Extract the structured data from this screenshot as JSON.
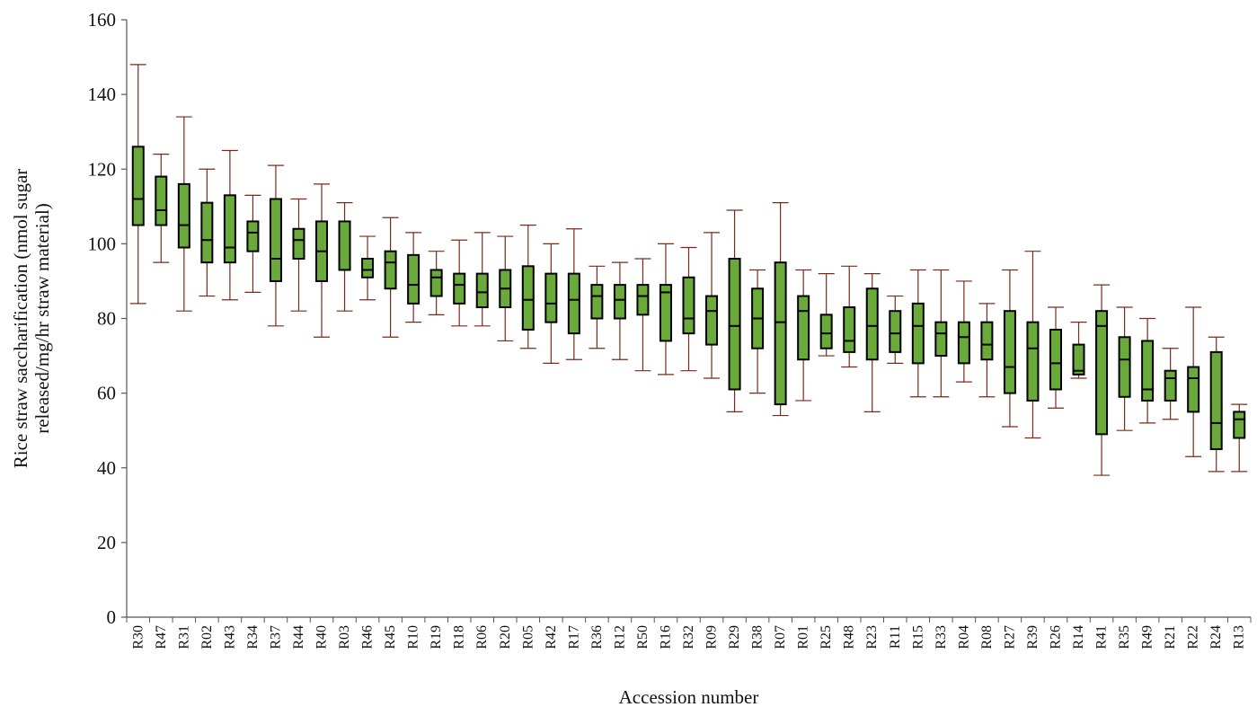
{
  "chart_data": {
    "type": "boxplot",
    "title": "",
    "xlabel": "Accession number",
    "ylabel_lines": [
      "Rice straw saccharification (nmol sugar",
      "released/mg/hr straw material)"
    ],
    "ylim": [
      0,
      160
    ],
    "yticks": [
      0,
      20,
      40,
      60,
      80,
      100,
      120,
      140,
      160
    ],
    "box_color": "#6aaa3a",
    "whisker_color": "#7a2a1a",
    "grid": false,
    "categories": [
      "R30",
      "R47",
      "R31",
      "R02",
      "R43",
      "R34",
      "R37",
      "R44",
      "R40",
      "R03",
      "R46",
      "R45",
      "R10",
      "R19",
      "R18",
      "R06",
      "R20",
      "R05",
      "R42",
      "R17",
      "R36",
      "R12",
      "R50",
      "R16",
      "R32",
      "R09",
      "R29",
      "R38",
      "R07",
      "R01",
      "R25",
      "R48",
      "R23",
      "R11",
      "R15",
      "R33",
      "R04",
      "R08",
      "R27",
      "R39",
      "R26",
      "R14",
      "R41",
      "R35",
      "R49",
      "R21",
      "R22",
      "R24",
      "R13"
    ],
    "boxes": [
      {
        "min": 84,
        "q1": 105,
        "median": 112,
        "q3": 126,
        "max": 148
      },
      {
        "min": 95,
        "q1": 105,
        "median": 109,
        "q3": 118,
        "max": 124
      },
      {
        "min": 82,
        "q1": 99,
        "median": 105,
        "q3": 116,
        "max": 134
      },
      {
        "min": 86,
        "q1": 95,
        "median": 101,
        "q3": 111,
        "max": 120
      },
      {
        "min": 85,
        "q1": 95,
        "median": 99,
        "q3": 113,
        "max": 125
      },
      {
        "min": 87,
        "q1": 98,
        "median": 103,
        "q3": 106,
        "max": 113
      },
      {
        "min": 78,
        "q1": 90,
        "median": 96,
        "q3": 112,
        "max": 121
      },
      {
        "min": 82,
        "q1": 96,
        "median": 101,
        "q3": 104,
        "max": 112
      },
      {
        "min": 75,
        "q1": 90,
        "median": 98,
        "q3": 106,
        "max": 116
      },
      {
        "min": 82,
        "q1": 93,
        "median": 93,
        "q3": 106,
        "max": 111
      },
      {
        "min": 85,
        "q1": 91,
        "median": 93,
        "q3": 96,
        "max": 102
      },
      {
        "min": 75,
        "q1": 88,
        "median": 95,
        "q3": 98,
        "max": 107
      },
      {
        "min": 79,
        "q1": 84,
        "median": 89,
        "q3": 97,
        "max": 103
      },
      {
        "min": 81,
        "q1": 86,
        "median": 91,
        "q3": 93,
        "max": 98
      },
      {
        "min": 78,
        "q1": 84,
        "median": 89,
        "q3": 92,
        "max": 101
      },
      {
        "min": 78,
        "q1": 83,
        "median": 87,
        "q3": 92,
        "max": 103
      },
      {
        "min": 74,
        "q1": 83,
        "median": 88,
        "q3": 93,
        "max": 102
      },
      {
        "min": 72,
        "q1": 77,
        "median": 85,
        "q3": 94,
        "max": 105
      },
      {
        "min": 68,
        "q1": 79,
        "median": 84,
        "q3": 92,
        "max": 100
      },
      {
        "min": 69,
        "q1": 76,
        "median": 85,
        "q3": 92,
        "max": 104
      },
      {
        "min": 72,
        "q1": 80,
        "median": 86,
        "q3": 89,
        "max": 94
      },
      {
        "min": 69,
        "q1": 80,
        "median": 85,
        "q3": 89,
        "max": 95
      },
      {
        "min": 66,
        "q1": 81,
        "median": 86,
        "q3": 89,
        "max": 96
      },
      {
        "min": 65,
        "q1": 74,
        "median": 87,
        "q3": 89,
        "max": 100
      },
      {
        "min": 66,
        "q1": 76,
        "median": 80,
        "q3": 91,
        "max": 99
      },
      {
        "min": 64,
        "q1": 73,
        "median": 82,
        "q3": 86,
        "max": 103
      },
      {
        "min": 55,
        "q1": 61,
        "median": 78,
        "q3": 96,
        "max": 109
      },
      {
        "min": 60,
        "q1": 72,
        "median": 80,
        "q3": 88,
        "max": 93
      },
      {
        "min": 54,
        "q1": 57,
        "median": 79,
        "q3": 95,
        "max": 111
      },
      {
        "min": 58,
        "q1": 69,
        "median": 82,
        "q3": 86,
        "max": 93
      },
      {
        "min": 70,
        "q1": 72,
        "median": 76,
        "q3": 81,
        "max": 92
      },
      {
        "min": 67,
        "q1": 71,
        "median": 74,
        "q3": 83,
        "max": 94
      },
      {
        "min": 55,
        "q1": 69,
        "median": 78,
        "q3": 88,
        "max": 92
      },
      {
        "min": 68,
        "q1": 71,
        "median": 76,
        "q3": 82,
        "max": 86
      },
      {
        "min": 59,
        "q1": 68,
        "median": 78,
        "q3": 84,
        "max": 93
      },
      {
        "min": 59,
        "q1": 70,
        "median": 76,
        "q3": 79,
        "max": 93
      },
      {
        "min": 63,
        "q1": 68,
        "median": 75,
        "q3": 79,
        "max": 90
      },
      {
        "min": 59,
        "q1": 69,
        "median": 73,
        "q3": 79,
        "max": 84
      },
      {
        "min": 51,
        "q1": 60,
        "median": 67,
        "q3": 82,
        "max": 93
      },
      {
        "min": 48,
        "q1": 58,
        "median": 72,
        "q3": 79,
        "max": 98
      },
      {
        "min": 56,
        "q1": 61,
        "median": 68,
        "q3": 77,
        "max": 83
      },
      {
        "min": 64,
        "q1": 65,
        "median": 66,
        "q3": 73,
        "max": 79
      },
      {
        "min": 38,
        "q1": 49,
        "median": 78,
        "q3": 82,
        "max": 89
      },
      {
        "min": 50,
        "q1": 59,
        "median": 69,
        "q3": 75,
        "max": 83
      },
      {
        "min": 52,
        "q1": 58,
        "median": 61,
        "q3": 74,
        "max": 80
      },
      {
        "min": 53,
        "q1": 58,
        "median": 64,
        "q3": 66,
        "max": 72
      },
      {
        "min": 43,
        "q1": 55,
        "median": 64,
        "q3": 67,
        "max": 83
      },
      {
        "min": 39,
        "q1": 45,
        "median": 52,
        "q3": 71,
        "max": 75
      },
      {
        "min": 39,
        "q1": 48,
        "median": 53,
        "q3": 55,
        "max": 57
      }
    ]
  }
}
